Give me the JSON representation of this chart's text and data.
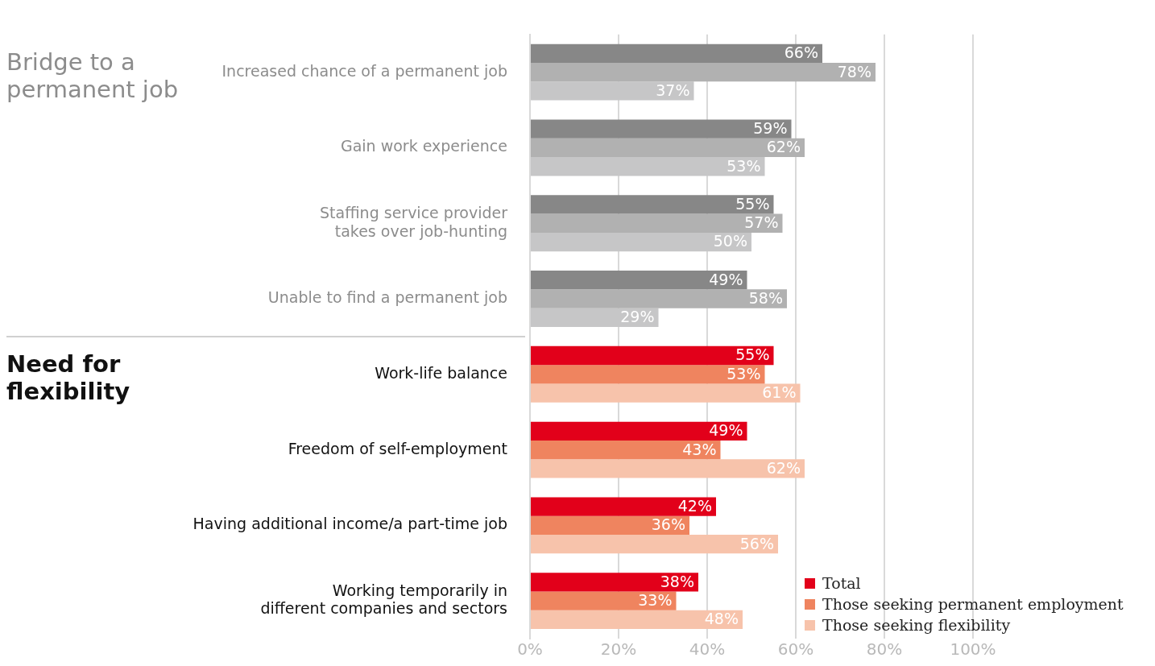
{
  "chart_data": {
    "type": "bar",
    "orientation": "horizontal",
    "categories": [
      "Increased chance of a permanent job",
      "Gain work experience",
      "Staffing service provider takes over job-hunting",
      "Unable to find a permanent job",
      "Work-life balance",
      "Freedom of self-employment",
      "Having additional income/a part-time job",
      "Working temporarily in different companies and sectors"
    ],
    "series": [
      {
        "name": "Total",
        "color": "#e2001a",
        "colors": [
          "#878787",
          "#878787",
          "#878787",
          "#878787",
          "#e2001a",
          "#e2001a",
          "#e2001a",
          "#e2001a"
        ],
        "values": [
          66,
          59,
          55,
          49,
          55,
          49,
          42,
          38
        ],
        "value_labels": [
          "66%",
          "59%",
          "55%",
          "49%",
          "55%",
          "49%",
          "42%",
          "38%"
        ]
      },
      {
        "name": "Those seeking permanent employment",
        "color": "#ef845f",
        "colors": [
          "#b1b1b1",
          "#b1b1b1",
          "#b1b1b1",
          "#b1b1b1",
          "#ef845f",
          "#ef845f",
          "#ef845f",
          "#ef845f"
        ],
        "values": [
          78,
          62,
          57,
          58,
          53,
          43,
          36,
          33
        ],
        "value_labels": [
          "78%",
          "62%",
          "57%",
          "58%",
          "53%",
          "43%",
          "36%",
          "33%"
        ]
      },
      {
        "name": "Those seeking flexibility",
        "color": "#f7c3ab",
        "colors": [
          "#c6c6c7",
          "#c6c6c7",
          "#c6c6c7",
          "#c6c6c7",
          "#f7c3ab",
          "#f7c3ab",
          "#f7c3ab",
          "#f7c3ab"
        ],
        "values": [
          37,
          53,
          50,
          29,
          61,
          62,
          56,
          48
        ],
        "value_labels": [
          "37%",
          "53%",
          "50%",
          "29%",
          "61%",
          "62%",
          "56%",
          "48%"
        ]
      }
    ],
    "xlim": [
      0,
      100
    ],
    "xticks": [
      {
        "value": 0,
        "label": "0%"
      },
      {
        "value": 20,
        "label": "20%"
      },
      {
        "value": 40,
        "label": "40%"
      },
      {
        "value": 60,
        "label": "60%"
      },
      {
        "value": 80,
        "label": "80%"
      },
      {
        "value": 100,
        "label": "100%"
      }
    ],
    "grid": "x",
    "legend": "bottom right",
    "annotations": [
      "Bridge to a permanent job",
      "Need for flexibility"
    ]
  }
}
